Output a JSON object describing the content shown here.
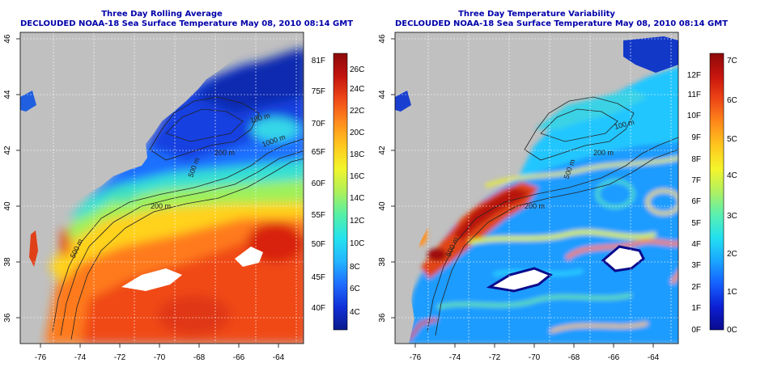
{
  "panels": [
    {
      "title": "Three Day Rolling Average",
      "subtitle": "DECLOUDED NOAA-18 Sea Surface Temperature May 08, 2010 08:14 GMT",
      "colorbar": {
        "colors": [
          "#0a1a8c",
          "#1030d8",
          "#1f6fff",
          "#22b6ff",
          "#25e3ee",
          "#56f0a5",
          "#aef05a",
          "#f2f52a",
          "#ffc81f",
          "#ff8c1c",
          "#f04a18",
          "#c3140f",
          "#8c0a0a"
        ],
        "left_labels": [
          "81F",
          "75F",
          "70F",
          "65F",
          "60F",
          "55F",
          "50F",
          "45F",
          "40F"
        ],
        "right_labels": [
          "26C",
          "24C",
          "22C",
          "20C",
          "18C",
          "16C",
          "14C",
          "12C",
          "10C",
          "8C",
          "6C",
          "4C"
        ]
      },
      "contour_labels": [
        "100 m",
        "200 m",
        "500 m",
        "1000 m",
        "200 m",
        "500 m"
      ]
    },
    {
      "title": "Three Day Temperature Variability",
      "subtitle": "DECLOUDED NOAA-18 Sea Surface Temperature May 08, 2010 08:14 GMT",
      "colorbar": {
        "colors": [
          "#0a0a8c",
          "#0c1fd4",
          "#1560ff",
          "#1aa6ff",
          "#22e0f0",
          "#5af0b0",
          "#b0f060",
          "#f5f52a",
          "#ffc61e",
          "#ff8a1a",
          "#ee4616",
          "#c8140e",
          "#8c0a0a"
        ],
        "left_labels": [
          "12F",
          "11F",
          "10F",
          "9F",
          "8F",
          "7F",
          "6F",
          "5F",
          "4F",
          "3F",
          "2F",
          "1F",
          "0F"
        ],
        "right_labels": [
          "7C",
          "6C",
          "5C",
          "4C",
          "3C",
          "2C",
          "1C",
          "0C"
        ]
      },
      "contour_labels": [
        "100 m",
        "200 m",
        "500 m",
        "200 m",
        "500 m"
      ]
    }
  ],
  "axes": {
    "x_ticks": [
      "-76",
      "-74",
      "-72",
      "-70",
      "-68",
      "-66",
      "-64"
    ],
    "y_ticks": [
      "46",
      "44",
      "42",
      "40",
      "38",
      "36"
    ]
  },
  "colors": {
    "land": "#c0c0c0",
    "title_blue": "#0000aa",
    "grid": "#ffffff",
    "contour": "#222222"
  }
}
